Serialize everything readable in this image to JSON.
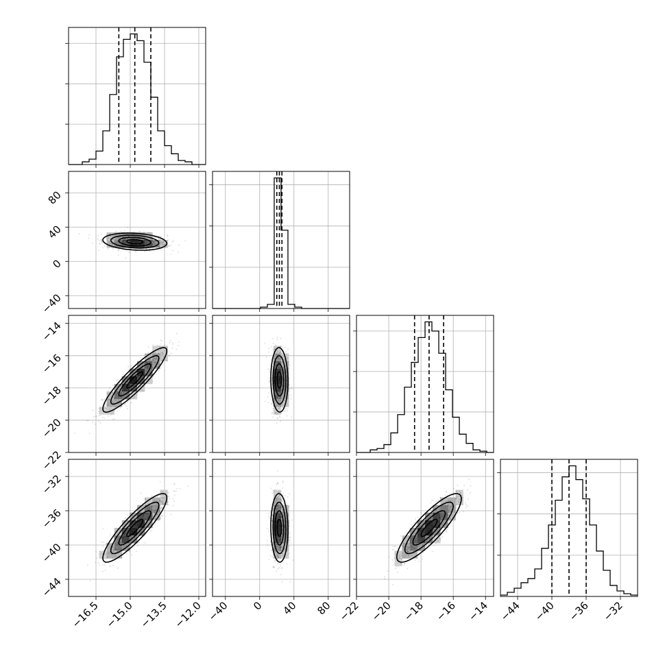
{
  "chart_data": {
    "type": "corner",
    "grid": true,
    "parameters": [
      {
        "range": [
          -17.7,
          -11.7
        ],
        "ticks": [
          -16.5,
          -15.0,
          -13.5,
          -12.0
        ],
        "tick_labels": [
          "−16.5",
          "−15.0",
          "−13.5",
          "−12.0"
        ],
        "mean": -14.8,
        "sd": 0.7,
        "quantiles": [
          -15.5,
          -14.8,
          -14.1
        ]
      },
      {
        "range": [
          -55,
          105
        ],
        "ticks": [
          -40,
          0,
          40,
          80
        ],
        "tick_labels": [
          "−40",
          "0",
          "40",
          "80"
        ],
        "mean": 23,
        "sd": 5,
        "quantiles": [
          20.0,
          23.0,
          26.0
        ]
      },
      {
        "range": [
          -22,
          -13.5
        ],
        "ticks": [
          -22,
          -20,
          -18,
          -16,
          -14
        ],
        "tick_labels": [
          "−22",
          "−20",
          "−18",
          "−16",
          "−14"
        ],
        "mean": -17.5,
        "sd": 1.0,
        "quantiles": [
          -18.4,
          -17.5,
          -16.6
        ]
      },
      {
        "range": [
          -46,
          -30
        ],
        "ticks": [
          -44,
          -40,
          -36,
          -32
        ],
        "tick_labels": [
          "−44",
          "−40",
          "−36",
          "−32"
        ],
        "mean": -38.0,
        "sd": 2.0,
        "quantiles": [
          -40.0,
          -38.0,
          -36.0
        ]
      }
    ],
    "histograms": [
      {
        "param": 0,
        "bin_edges": [
          -17.7,
          -17.4,
          -17.1,
          -16.8,
          -16.5,
          -16.2,
          -15.9,
          -15.6,
          -15.3,
          -15.0,
          -14.7,
          -14.4,
          -14.1,
          -13.8,
          -13.5,
          -13.2,
          -12.9,
          -12.6,
          -12.3,
          -12.0,
          -11.7
        ],
        "counts": [
          0,
          0,
          2,
          4,
          10,
          25,
          52,
          80,
          93,
          97,
          92,
          76,
          50,
          25,
          14,
          8,
          3,
          2,
          0,
          0
        ]
      },
      {
        "param": 1,
        "bin_edges": [
          -55,
          -47,
          -39,
          -31,
          -23,
          -15,
          -7,
          1,
          9,
          17,
          25,
          33,
          41,
          49,
          57,
          65,
          73,
          81,
          89,
          97,
          105
        ],
        "counts": [
          0,
          0,
          0,
          0,
          0,
          0,
          0,
          1,
          3,
          95,
          57,
          3,
          1,
          0,
          0,
          0,
          0,
          0,
          0,
          0
        ]
      },
      {
        "param": 2,
        "bin_edges": [
          -22.0,
          -21.575,
          -21.15,
          -20.725,
          -20.3,
          -19.875,
          -19.45,
          -19.025,
          -18.6,
          -18.175,
          -17.75,
          -17.325,
          -16.9,
          -16.475,
          -16.05,
          -15.625,
          -15.2,
          -14.775,
          -14.35,
          -13.925,
          -13.5
        ],
        "counts": [
          0,
          0,
          2,
          3,
          6,
          15,
          29,
          50,
          69,
          88,
          100,
          93,
          76,
          48,
          27,
          14,
          7,
          2,
          1,
          0
        ]
      },
      {
        "param": 3,
        "bin_edges": [
          -46.0,
          -45.2,
          -44.4,
          -43.6,
          -42.8,
          -42.0,
          -41.2,
          -40.4,
          -39.6,
          -38.8,
          -38.0,
          -37.2,
          -36.4,
          -35.6,
          -34.8,
          -34.0,
          -33.2,
          -32.4,
          -31.6,
          -30.8,
          -30.0
        ],
        "counts": [
          1,
          3,
          6,
          10,
          13,
          20,
          35,
          52,
          70,
          87,
          95,
          85,
          71,
          52,
          33,
          19,
          8,
          4,
          2,
          1
        ]
      }
    ],
    "pairs": [
      {
        "x": 0,
        "y": 1,
        "correlation": -0.2
      },
      {
        "x": 0,
        "y": 2,
        "correlation": 0.9
      },
      {
        "x": 1,
        "y": 2,
        "correlation": -0.05
      },
      {
        "x": 0,
        "y": 3,
        "correlation": 0.88
      },
      {
        "x": 1,
        "y": 3,
        "correlation": -0.05
      },
      {
        "x": 2,
        "y": 3,
        "correlation": 0.85
      }
    ],
    "title": "",
    "xlabel": "",
    "ylabel": ""
  }
}
